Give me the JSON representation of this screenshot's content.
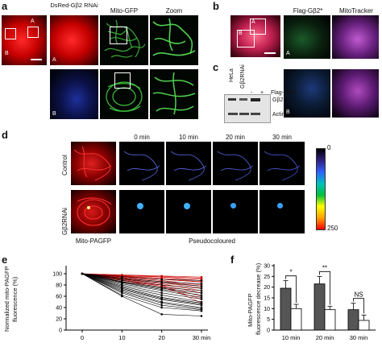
{
  "panel_a": {
    "label": "a",
    "headers": [
      "DsRed-Gβ2 RNAi",
      "Mito-GFP",
      "Zoom"
    ],
    "letter_a": "A",
    "letter_b": "B",
    "row_letter_a": "A",
    "row_letter_b": "B"
  },
  "panel_b": {
    "label": "b",
    "headers": [
      "Flag-Gβ2*",
      "MitoTracker"
    ],
    "box_a": "A",
    "box_b": "B",
    "row_letter_a": "A",
    "row_letter_b": "B"
  },
  "panel_c": {
    "label": "c",
    "lanes": [
      "HeLa",
      "Gβ2RNAi"
    ],
    "plus_minus": [
      "-",
      "+"
    ],
    "row_labels": [
      "Flag-Gβ2*",
      "Gβ2",
      "Actin"
    ]
  },
  "panel_d": {
    "label": "d",
    "times": [
      "0 min",
      "10 min",
      "20 min",
      "30 min"
    ],
    "rows": [
      "Control",
      "Gβ2RNAi"
    ],
    "footer_left": "Mito-PAGFP",
    "footer_right": "Pseudocoloured",
    "colorbar_min": "0",
    "colorbar_max": "250"
  },
  "panel_e": {
    "label": "e",
    "ylabel_line1": "Normalized mito-PAGFP",
    "ylabel_line2": "fluorescence (%)",
    "yticks": [
      "100",
      "80",
      "60",
      "40",
      "20",
      "0"
    ],
    "xticks": [
      "0",
      "10",
      "20",
      "30 min"
    ]
  },
  "panel_f": {
    "label": "f",
    "ylabel_line1": "Mito-PAGFP",
    "ylabel_line2": "fluorescence decrease (%)",
    "yticks": [
      "30",
      "25",
      "20",
      "15",
      "10",
      "5",
      "0"
    ],
    "xticks": [
      "10 min",
      "20 min",
      "30 min"
    ],
    "sig": [
      "*",
      "**",
      "NS"
    ]
  },
  "chart_data": [
    {
      "type": "line",
      "panel": "e",
      "x": [
        0,
        10,
        20,
        30
      ],
      "x_unit": "min",
      "ylim": [
        0,
        110
      ],
      "ylabel": "Normalized mito-PAGFP fluorescence (%)",
      "series": [
        {
          "color": "#cc0000",
          "values": [
            100,
            98,
            96,
            94
          ]
        },
        {
          "color": "#cc0000",
          "values": [
            100,
            97,
            95,
            92
          ]
        },
        {
          "color": "#cc0000",
          "values": [
            100,
            96,
            94,
            90
          ]
        },
        {
          "color": "#cc0000",
          "values": [
            100,
            95,
            92,
            88
          ]
        },
        {
          "color": "#cc0000",
          "values": [
            100,
            94,
            90,
            85
          ]
        },
        {
          "color": "#cc0000",
          "values": [
            100,
            93,
            88,
            80
          ]
        },
        {
          "color": "#cc0000",
          "values": [
            100,
            92,
            86,
            78
          ]
        },
        {
          "color": "#cc0000",
          "values": [
            100,
            91,
            84,
            75
          ]
        },
        {
          "color": "#cc0000",
          "values": [
            100,
            90,
            82,
            70
          ]
        },
        {
          "color": "#cc0000",
          "values": [
            100,
            89,
            80,
            66
          ]
        },
        {
          "color": "#cc0000",
          "values": [
            100,
            88,
            78,
            60
          ]
        },
        {
          "color": "#cc0000",
          "values": [
            100,
            86,
            76,
            55
          ]
        },
        {
          "color": "#cc0000",
          "values": [
            100,
            85,
            80,
            48
          ]
        },
        {
          "color": "#cc0000",
          "values": [
            100,
            96,
            90,
            86
          ]
        },
        {
          "color": "#000000",
          "values": [
            100,
            95,
            90,
            88
          ]
        },
        {
          "color": "#000000",
          "values": [
            100,
            92,
            86,
            82
          ]
        },
        {
          "color": "#000000",
          "values": [
            100,
            90,
            84,
            78
          ]
        },
        {
          "color": "#000000",
          "values": [
            100,
            88,
            80,
            74
          ]
        },
        {
          "color": "#000000",
          "values": [
            100,
            86,
            76,
            70
          ]
        },
        {
          "color": "#000000",
          "values": [
            100,
            85,
            74,
            66
          ]
        },
        {
          "color": "#000000",
          "values": [
            100,
            84,
            72,
            62
          ]
        },
        {
          "color": "#000000",
          "values": [
            100,
            82,
            70,
            58
          ]
        },
        {
          "color": "#000000",
          "values": [
            100,
            80,
            66,
            55
          ]
        },
        {
          "color": "#000000",
          "values": [
            100,
            78,
            62,
            50
          ]
        },
        {
          "color": "#000000",
          "values": [
            100,
            76,
            58,
            48
          ]
        },
        {
          "color": "#000000",
          "values": [
            100,
            74,
            56,
            46
          ]
        },
        {
          "color": "#000000",
          "values": [
            100,
            72,
            54,
            44
          ]
        },
        {
          "color": "#000000",
          "values": [
            100,
            70,
            50,
            40
          ]
        },
        {
          "color": "#000000",
          "values": [
            100,
            68,
            48,
            38
          ]
        },
        {
          "color": "#000000",
          "values": [
            100,
            66,
            44,
            36
          ]
        },
        {
          "color": "#000000",
          "values": [
            100,
            62,
            40,
            34
          ]
        },
        {
          "color": "#000000",
          "values": [
            100,
            60,
            28,
            25
          ]
        }
      ]
    },
    {
      "type": "bar",
      "panel": "f",
      "categories": [
        "10 min",
        "20 min",
        "30 min"
      ],
      "ylim": [
        0,
        30
      ],
      "ylabel": "Mito-PAGFP fluorescence decrease (%)",
      "series": [
        {
          "color": "#555555",
          "values": [
            19.5,
            21.5,
            9.5
          ],
          "errors": [
            3.5,
            3.5,
            3.0
          ]
        },
        {
          "color": "#ffffff",
          "values": [
            10,
            9.5,
            4.5
          ],
          "errors": [
            2.0,
            1.5,
            2.5
          ]
        }
      ],
      "significance": [
        "*",
        "**",
        "NS"
      ]
    }
  ]
}
